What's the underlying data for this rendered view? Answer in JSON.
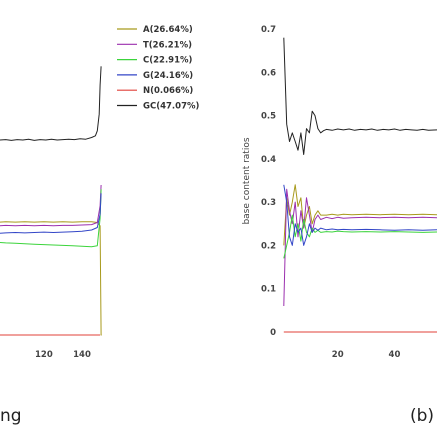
{
  "chart_data": [
    {
      "type": "line",
      "title": "",
      "xlabel": "",
      "ylabel": "",
      "x_ticks": [
        120,
        140
      ],
      "xlim": [
        97,
        151
      ],
      "ylim": [
        0,
        0.78
      ],
      "grid": false,
      "legend": "top-right",
      "caption_fragment": "ng",
      "series": [
        {
          "name": "A(26.64%)",
          "color": "#a89a1c",
          "x": [
            97,
            100,
            105,
            110,
            115,
            120,
            125,
            130,
            135,
            140,
            145,
            148,
            149.5,
            150,
            150.3
          ],
          "y": [
            0.271,
            0.272,
            0.271,
            0.272,
            0.271,
            0.272,
            0.271,
            0.272,
            0.271,
            0.272,
            0.272,
            0.27,
            0.262,
            0.0,
            0.0
          ]
        },
        {
          "name": "T(26.21%)",
          "color": "#9b2fae",
          "x": [
            97,
            100,
            105,
            110,
            115,
            120,
            125,
            130,
            135,
            140,
            145,
            148,
            149.5,
            150
          ],
          "y": [
            0.262,
            0.263,
            0.262,
            0.263,
            0.262,
            0.263,
            0.262,
            0.263,
            0.263,
            0.264,
            0.265,
            0.27,
            0.31,
            0.36
          ]
        },
        {
          "name": "C(22.91%)",
          "color": "#3cd43c",
          "x": [
            97,
            100,
            105,
            110,
            115,
            120,
            125,
            130,
            135,
            140,
            145,
            148,
            149.5,
            150
          ],
          "y": [
            0.222,
            0.221,
            0.22,
            0.219,
            0.218,
            0.217,
            0.216,
            0.215,
            0.214,
            0.213,
            0.212,
            0.214,
            0.28,
            0.35
          ]
        },
        {
          "name": "G(24.16%)",
          "color": "#3346c7",
          "x": [
            97,
            100,
            105,
            110,
            115,
            120,
            125,
            130,
            135,
            140,
            145,
            148,
            149.5,
            150
          ],
          "y": [
            0.244,
            0.245,
            0.246,
            0.245,
            0.246,
            0.247,
            0.246,
            0.247,
            0.248,
            0.249,
            0.252,
            0.258,
            0.29,
            0.34
          ]
        },
        {
          "name": "N(0.066%)",
          "color": "#e0413a",
          "x": [
            97,
            110,
            120,
            130,
            140,
            148,
            149.5
          ],
          "y": [
            0.0,
            0.0,
            0.0,
            0.0,
            0.0,
            0.0,
            0.0
          ]
        },
        {
          "name": "GC(47.07%)",
          "color": "#222222",
          "x": [
            97,
            100,
            103,
            106,
            109,
            112,
            115,
            118,
            121,
            124,
            127,
            130,
            133,
            136,
            139,
            142,
            145,
            147,
            148,
            149,
            149.5,
            150
          ],
          "y": [
            0.468,
            0.469,
            0.467,
            0.469,
            0.468,
            0.47,
            0.467,
            0.469,
            0.468,
            0.47,
            0.468,
            0.469,
            0.47,
            0.469,
            0.471,
            0.47,
            0.474,
            0.478,
            0.49,
            0.53,
            0.6,
            0.645
          ]
        }
      ]
    },
    {
      "type": "line",
      "title": "",
      "xlabel": "",
      "ylabel": "base content ratios",
      "x_ticks": [
        20,
        40
      ],
      "y_ticks": [
        "0",
        "0.1",
        "0.2",
        "0.3",
        "0.4",
        "0.5",
        "0.6",
        "0.7"
      ],
      "xlim": [
        0,
        55
      ],
      "ylim": [
        0,
        0.7
      ],
      "grid": false,
      "legend": "none",
      "caption": "(b)",
      "series": [
        {
          "color": "#a89a1c",
          "x": [
            1,
            2,
            3,
            4,
            5,
            6,
            7,
            8,
            9,
            10,
            11,
            12,
            13,
            14,
            16,
            18,
            20,
            22,
            25,
            30,
            35,
            40,
            45,
            50,
            55
          ],
          "y": [
            0.2,
            0.31,
            0.27,
            0.3,
            0.34,
            0.29,
            0.31,
            0.24,
            0.27,
            0.29,
            0.25,
            0.27,
            0.28,
            0.27,
            0.27,
            0.272,
            0.27,
            0.272,
            0.271,
            0.272,
            0.271,
            0.272,
            0.271,
            0.272,
            0.271
          ]
        },
        {
          "color": "#9b2fae",
          "x": [
            1,
            2,
            3,
            4,
            5,
            6,
            7,
            8,
            9,
            10,
            11,
            12,
            13,
            14,
            16,
            18,
            20,
            22,
            25,
            30,
            35,
            40,
            45,
            50,
            55
          ],
          "y": [
            0.06,
            0.33,
            0.28,
            0.25,
            0.3,
            0.22,
            0.28,
            0.24,
            0.31,
            0.27,
            0.23,
            0.26,
            0.27,
            0.26,
            0.265,
            0.262,
            0.265,
            0.263,
            0.264,
            0.265,
            0.264,
            0.265,
            0.264,
            0.265,
            0.264
          ]
        },
        {
          "color": "#3cd43c",
          "x": [
            1,
            2,
            3,
            4,
            5,
            6,
            7,
            8,
            9,
            10,
            11,
            12,
            13,
            14,
            16,
            18,
            20,
            22,
            25,
            30,
            35,
            40,
            45,
            50,
            55
          ],
          "y": [
            0.17,
            0.2,
            0.23,
            0.27,
            0.22,
            0.25,
            0.21,
            0.26,
            0.23,
            0.22,
            0.24,
            0.23,
            0.235,
            0.23,
            0.232,
            0.231,
            0.233,
            0.232,
            0.231,
            0.232,
            0.231,
            0.232,
            0.231,
            0.23,
            0.231
          ]
        },
        {
          "color": "#3346c7",
          "x": [
            1,
            2,
            3,
            4,
            5,
            6,
            7,
            8,
            9,
            10,
            11,
            12,
            13,
            14,
            16,
            18,
            20,
            22,
            25,
            30,
            35,
            40,
            45,
            50,
            55
          ],
          "y": [
            0.34,
            0.3,
            0.22,
            0.2,
            0.25,
            0.23,
            0.24,
            0.2,
            0.22,
            0.25,
            0.23,
            0.24,
            0.235,
            0.24,
            0.236,
            0.238,
            0.236,
            0.237,
            0.236,
            0.237,
            0.236,
            0.235,
            0.236,
            0.235,
            0.236
          ]
        },
        {
          "color": "#e0413a",
          "x": [
            1,
            10,
            20,
            30,
            40,
            50,
            55
          ],
          "y": [
            0.0,
            0.0,
            0.0,
            0.0,
            0.0,
            0.0,
            0.0
          ]
        },
        {
          "color": "#222222",
          "x": [
            1,
            2,
            3,
            4,
            5,
            6,
            7,
            8,
            9,
            10,
            11,
            12,
            13,
            14,
            15,
            16,
            18,
            20,
            22,
            24,
            26,
            28,
            30,
            32,
            34,
            36,
            38,
            40,
            42,
            44,
            46,
            48,
            50,
            52,
            55
          ],
          "y": [
            0.68,
            0.48,
            0.44,
            0.46,
            0.44,
            0.42,
            0.46,
            0.41,
            0.47,
            0.46,
            0.51,
            0.5,
            0.47,
            0.46,
            0.465,
            0.468,
            0.466,
            0.469,
            0.467,
            0.469,
            0.466,
            0.468,
            0.467,
            0.469,
            0.466,
            0.468,
            0.467,
            0.469,
            0.466,
            0.468,
            0.467,
            0.466,
            0.468,
            0.466,
            0.467
          ]
        }
      ]
    }
  ]
}
